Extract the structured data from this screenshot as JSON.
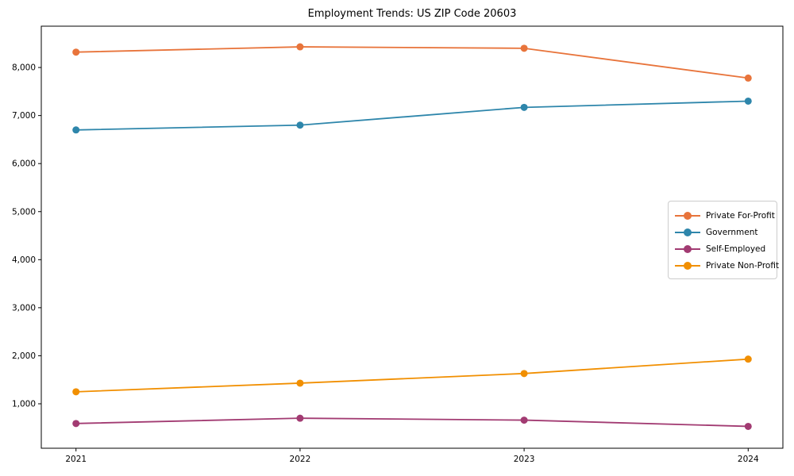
{
  "chart_data": {
    "type": "line",
    "title": "Employment Trends: US ZIP Code 20603",
    "categories": [
      "2021",
      "2022",
      "2023",
      "2024"
    ],
    "series": [
      {
        "name": "Private For-Profit",
        "color": "#E8743B",
        "values": [
          8320,
          8430,
          8400,
          7780
        ]
      },
      {
        "name": "Government",
        "color": "#2E86AB",
        "values": [
          6700,
          6800,
          7170,
          7300
        ]
      },
      {
        "name": "Self-Employed",
        "color": "#A23B72",
        "values": [
          590,
          700,
          660,
          530
        ]
      },
      {
        "name": "Private Non-Profit",
        "color": "#F18F01",
        "values": [
          1250,
          1430,
          1630,
          1930
        ]
      }
    ],
    "xlabel": "",
    "ylabel": "",
    "ylim": [
      75,
      8860
    ],
    "y_ticks": [
      1000,
      2000,
      3000,
      4000,
      5000,
      6000,
      7000,
      8000
    ],
    "y_tick_labels": [
      "1,000",
      "2,000",
      "3,000",
      "4,000",
      "5,000",
      "6,000",
      "7,000",
      "8,000"
    ],
    "grid": false,
    "marker": "circle",
    "legend_position": "center-right"
  }
}
